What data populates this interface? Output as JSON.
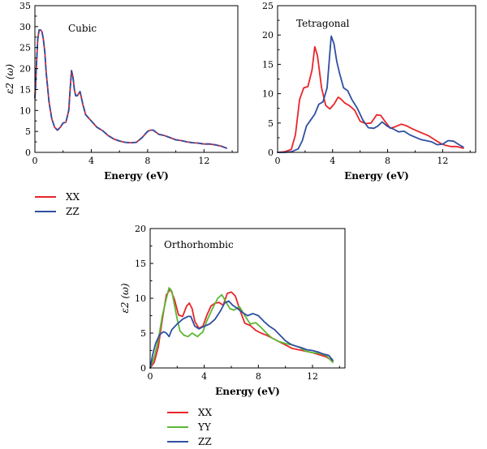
{
  "colors": {
    "XX": "#e8252a",
    "YY": "#5bb833",
    "ZZ": "#2f4fa0"
  },
  "chart_data": [
    {
      "type": "line",
      "id": "cubic",
      "title": "Cubic",
      "xlabel": "Energy (eV)",
      "ylabel": "ε2 (ω)",
      "xlim": [
        0,
        14.4
      ],
      "ylim": [
        0,
        35
      ],
      "xticks": [
        0,
        4,
        8,
        12
      ],
      "yticks": [
        0,
        5,
        10,
        15,
        20,
        25,
        30,
        35
      ],
      "grid": false,
      "series": [
        {
          "name": "XX",
          "color_key": "XX",
          "dash": false,
          "x": [
            0.0,
            0.05,
            0.1,
            0.2,
            0.3,
            0.4,
            0.5,
            0.6,
            0.7,
            0.8,
            1.0,
            1.2,
            1.4,
            1.6,
            1.8,
            2.0,
            2.2,
            2.4,
            2.5,
            2.6,
            2.7,
            2.8,
            2.9,
            3.0,
            3.2,
            3.4,
            3.6,
            4.0,
            4.4,
            4.8,
            5.2,
            5.6,
            6.0,
            6.4,
            6.8,
            7.2,
            7.6,
            8.0,
            8.2,
            8.4,
            8.8,
            9.2,
            9.6,
            10.0,
            10.4,
            10.8,
            11.2,
            11.6,
            12.0,
            12.4,
            12.8,
            13.2,
            13.6
          ],
          "y": [
            13,
            16,
            20,
            27,
            29.2,
            29.2,
            28.8,
            27,
            24,
            19,
            12,
            8,
            6,
            5.3,
            6,
            7,
            7.2,
            10,
            15,
            19.5,
            18,
            15,
            13.5,
            13.5,
            14.5,
            11.5,
            9,
            7.5,
            6,
            5.2,
            4,
            3.2,
            2.7,
            2.4,
            2.3,
            2.4,
            3.5,
            5,
            5.3,
            5.3,
            4.3,
            4,
            3.5,
            3,
            2.8,
            2.5,
            2.3,
            2.2,
            2,
            2,
            1.8,
            1.5,
            1
          ]
        },
        {
          "name": "ZZ",
          "color_key": "ZZ",
          "dash": true,
          "x": [
            0.0,
            0.05,
            0.1,
            0.2,
            0.3,
            0.4,
            0.5,
            0.6,
            0.7,
            0.8,
            1.0,
            1.2,
            1.4,
            1.6,
            1.8,
            2.0,
            2.2,
            2.4,
            2.5,
            2.6,
            2.7,
            2.8,
            2.9,
            3.0,
            3.2,
            3.4,
            3.6,
            4.0,
            4.4,
            4.8,
            5.2,
            5.6,
            6.0,
            6.4,
            6.8,
            7.2,
            7.6,
            8.0,
            8.2,
            8.4,
            8.8,
            9.2,
            9.6,
            10.0,
            10.4,
            10.8,
            11.2,
            11.6,
            12.0,
            12.4,
            12.8,
            13.2,
            13.6
          ],
          "y": [
            13,
            16,
            20,
            27,
            29.2,
            29.2,
            28.8,
            27,
            24,
            19,
            12,
            8,
            6,
            5.3,
            6,
            7,
            7.2,
            10,
            15,
            19.5,
            18,
            15,
            13.5,
            13.5,
            14.5,
            11.5,
            9,
            7.5,
            6,
            5.2,
            4,
            3.2,
            2.7,
            2.4,
            2.3,
            2.4,
            3.5,
            5,
            5.3,
            5.3,
            4.3,
            4,
            3.5,
            3,
            2.8,
            2.5,
            2.3,
            2.2,
            2,
            2,
            1.8,
            1.5,
            1
          ]
        }
      ]
    },
    {
      "type": "line",
      "id": "tetragonal",
      "title": "Tetragonal",
      "xlabel": "Energy (eV)",
      "ylabel": "",
      "xlim": [
        0,
        14.4
      ],
      "ylim": [
        0,
        25
      ],
      "xticks": [
        0,
        4,
        8,
        12
      ],
      "yticks": [
        0,
        5,
        10,
        15,
        20,
        25
      ],
      "grid": false,
      "series": [
        {
          "name": "XX",
          "color_key": "XX",
          "dash": false,
          "x": [
            0,
            0.5,
            1.0,
            1.3,
            1.6,
            1.9,
            2.2,
            2.5,
            2.7,
            2.9,
            3.2,
            3.5,
            3.8,
            4.1,
            4.4,
            4.6,
            4.9,
            5.2,
            5.6,
            6.0,
            6.4,
            6.8,
            7.2,
            7.5,
            7.8,
            8.2,
            8.6,
            9.0,
            9.4,
            9.8,
            10.2,
            10.6,
            11.0,
            11.4,
            11.8,
            12.2,
            12.6,
            13.0,
            13.5
          ],
          "y": [
            0,
            0.1,
            0.5,
            3,
            9,
            11,
            11.2,
            14,
            18,
            16.5,
            11,
            8,
            7.4,
            8.2,
            9.4,
            9.1,
            8.4,
            8.0,
            7.2,
            5.3,
            4.9,
            5.0,
            6.4,
            6.3,
            5.3,
            4.1,
            4.4,
            4.8,
            4.5,
            4.0,
            3.6,
            3.2,
            2.8,
            2.2,
            1.6,
            1.2,
            1.0,
            1.0,
            0.7
          ]
        },
        {
          "name": "ZZ",
          "color_key": "ZZ",
          "dash": false,
          "x": [
            0,
            0.5,
            1.0,
            1.5,
            1.8,
            2.1,
            2.4,
            2.7,
            3.0,
            3.3,
            3.6,
            3.8,
            3.9,
            4.1,
            4.3,
            4.5,
            4.8,
            5.1,
            5.4,
            5.8,
            6.2,
            6.6,
            7.0,
            7.3,
            7.6,
            8.0,
            8.4,
            8.8,
            9.2,
            9.6,
            10.0,
            10.4,
            10.8,
            11.2,
            11.6,
            12.0,
            12.4,
            12.8,
            13.2,
            13.5
          ],
          "y": [
            0,
            0,
            0.1,
            0.6,
            2,
            4.5,
            5.5,
            6.5,
            8.2,
            8.6,
            11,
            17,
            19.8,
            18.5,
            15.5,
            13.5,
            11,
            10.5,
            9,
            7.5,
            5.5,
            4.2,
            4.1,
            4.5,
            5.2,
            4.4,
            4.0,
            3.5,
            3.6,
            3.0,
            2.6,
            2.2,
            2.0,
            1.8,
            1.3,
            1.4,
            2.0,
            1.9,
            1.3,
            0.9
          ]
        }
      ]
    },
    {
      "type": "line",
      "id": "orthorhombic",
      "title": "Orthorhombic",
      "xlabel": "Energy (eV)",
      "ylabel": "ε2 (ω)",
      "xlim": [
        0,
        14.4
      ],
      "ylim": [
        0,
        20
      ],
      "xticks": [
        0,
        4,
        8,
        12
      ],
      "yticks": [
        0,
        5,
        10,
        15,
        20
      ],
      "grid": false,
      "series": [
        {
          "name": "XX",
          "color_key": "XX",
          "dash": false,
          "x": [
            0,
            0.3,
            0.6,
            0.9,
            1.2,
            1.5,
            1.8,
            2.1,
            2.4,
            2.7,
            2.9,
            3.1,
            3.3,
            3.6,
            3.9,
            4.2,
            4.5,
            4.8,
            5.1,
            5.4,
            5.7,
            6.0,
            6.3,
            6.6,
            7.0,
            7.4,
            7.8,
            8.2,
            8.6,
            9.0,
            9.5,
            10.0,
            10.5,
            11.0,
            11.5,
            12.0,
            12.5,
            13.0,
            13.5
          ],
          "y": [
            0,
            0.8,
            3,
            7,
            10.5,
            11.3,
            9.8,
            7.6,
            7.4,
            8.9,
            9.3,
            8.5,
            6.7,
            5.7,
            6.0,
            7.6,
            8.9,
            9.3,
            9.4,
            9.0,
            10.7,
            10.9,
            10.3,
            8.5,
            6.4,
            6.1,
            5.4,
            5.0,
            4.7,
            4.3,
            3.8,
            3.3,
            2.8,
            2.6,
            2.4,
            2.2,
            1.9,
            1.6,
            1.0
          ]
        },
        {
          "name": "YY",
          "color_key": "YY",
          "dash": false,
          "x": [
            0,
            0.3,
            0.6,
            0.9,
            1.2,
            1.4,
            1.6,
            1.8,
            2.0,
            2.2,
            2.5,
            2.8,
            3.1,
            3.5,
            3.9,
            4.2,
            4.6,
            5.0,
            5.3,
            5.6,
            5.9,
            6.2,
            6.6,
            7.0,
            7.4,
            7.8,
            8.2,
            8.6,
            9.0,
            9.5,
            10.0,
            10.5,
            11.0,
            11.5,
            12.0,
            12.5,
            13.0,
            13.5
          ],
          "y": [
            0,
            1.5,
            4,
            7.5,
            10,
            11.5,
            11,
            9,
            7,
            5.3,
            4.7,
            4.5,
            5.0,
            4.5,
            5.2,
            6.8,
            8.5,
            10.0,
            10.5,
            9.5,
            8.5,
            8.3,
            8.8,
            7.5,
            6.3,
            6.5,
            5.8,
            5.0,
            4.3,
            3.8,
            3.5,
            3.3,
            3.0,
            2.4,
            2.2,
            2.1,
            1.8,
            0.8
          ]
        },
        {
          "name": "ZZ",
          "color_key": "ZZ",
          "dash": false,
          "x": [
            0,
            0.2,
            0.4,
            0.7,
            1.0,
            1.2,
            1.4,
            1.6,
            2.0,
            2.4,
            2.8,
            3.0,
            3.3,
            3.6,
            4.0,
            4.4,
            4.8,
            5.2,
            5.5,
            5.8,
            6.1,
            6.4,
            6.8,
            7.2,
            7.6,
            8.0,
            8.4,
            8.8,
            9.2,
            9.6,
            10.0,
            10.4,
            10.8,
            11.2,
            11.6,
            12.0,
            12.4,
            12.8,
            13.2,
            13.5
          ],
          "y": [
            0,
            2,
            3.5,
            4.8,
            5.2,
            5.0,
            4.5,
            5.5,
            6.3,
            7.0,
            7.4,
            7.4,
            6.0,
            5.6,
            6.0,
            6.3,
            7.0,
            8.2,
            9.3,
            9.6,
            9.0,
            8.6,
            8.0,
            7.5,
            7.8,
            7.5,
            6.7,
            6.0,
            5.5,
            4.7,
            3.9,
            3.4,
            3.1,
            2.9,
            2.6,
            2.5,
            2.3,
            2.0,
            1.8,
            1.1
          ]
        }
      ]
    }
  ],
  "legend_top": {
    "items": [
      "XX",
      "ZZ"
    ]
  },
  "legend_bottom": {
    "items": [
      "XX",
      "YY",
      "ZZ"
    ]
  }
}
